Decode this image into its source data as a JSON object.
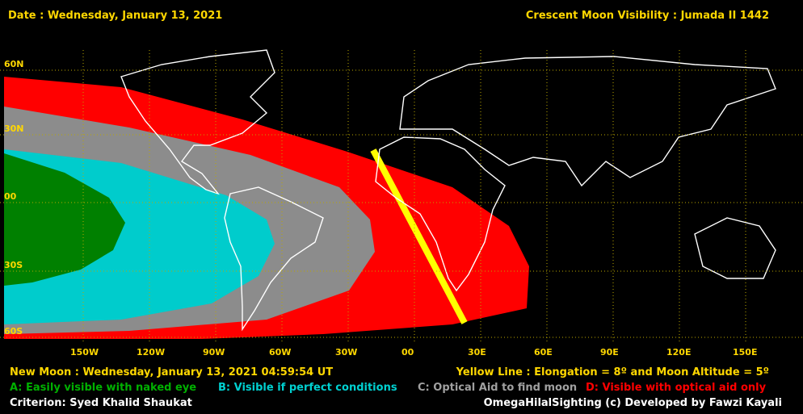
{
  "header": {
    "date": "Date : Wednesday, January 13, 2021",
    "title": "Crescent Moon Visibility : Jumada II  1442"
  },
  "map": {
    "lat_labels": [
      "60N",
      "30N",
      "00",
      "30S",
      "60S"
    ],
    "lon_labels": [
      "150W",
      "120W",
      "90W",
      "60W",
      "30W",
      "00",
      "30E",
      "60E",
      "90E",
      "120E",
      "150E"
    ]
  },
  "footer": {
    "new_moon": "New Moon : Wednesday, January 13, 2021  04:59:54  UT",
    "yellow_line": "Yellow Line : Elongation = 8º  and Moon Altitude = 5º",
    "legend": [
      "A: Easily visible with naked eye",
      "B: Visible if perfect conditions",
      "C: Optical Aid to find moon",
      "D: Visible with optical aid only"
    ],
    "criterion": "Criterion: Syed Khalid Shaukat",
    "credit": "OmegaHilalSighting  (c)  Developed by Fawzi Kayali"
  }
}
